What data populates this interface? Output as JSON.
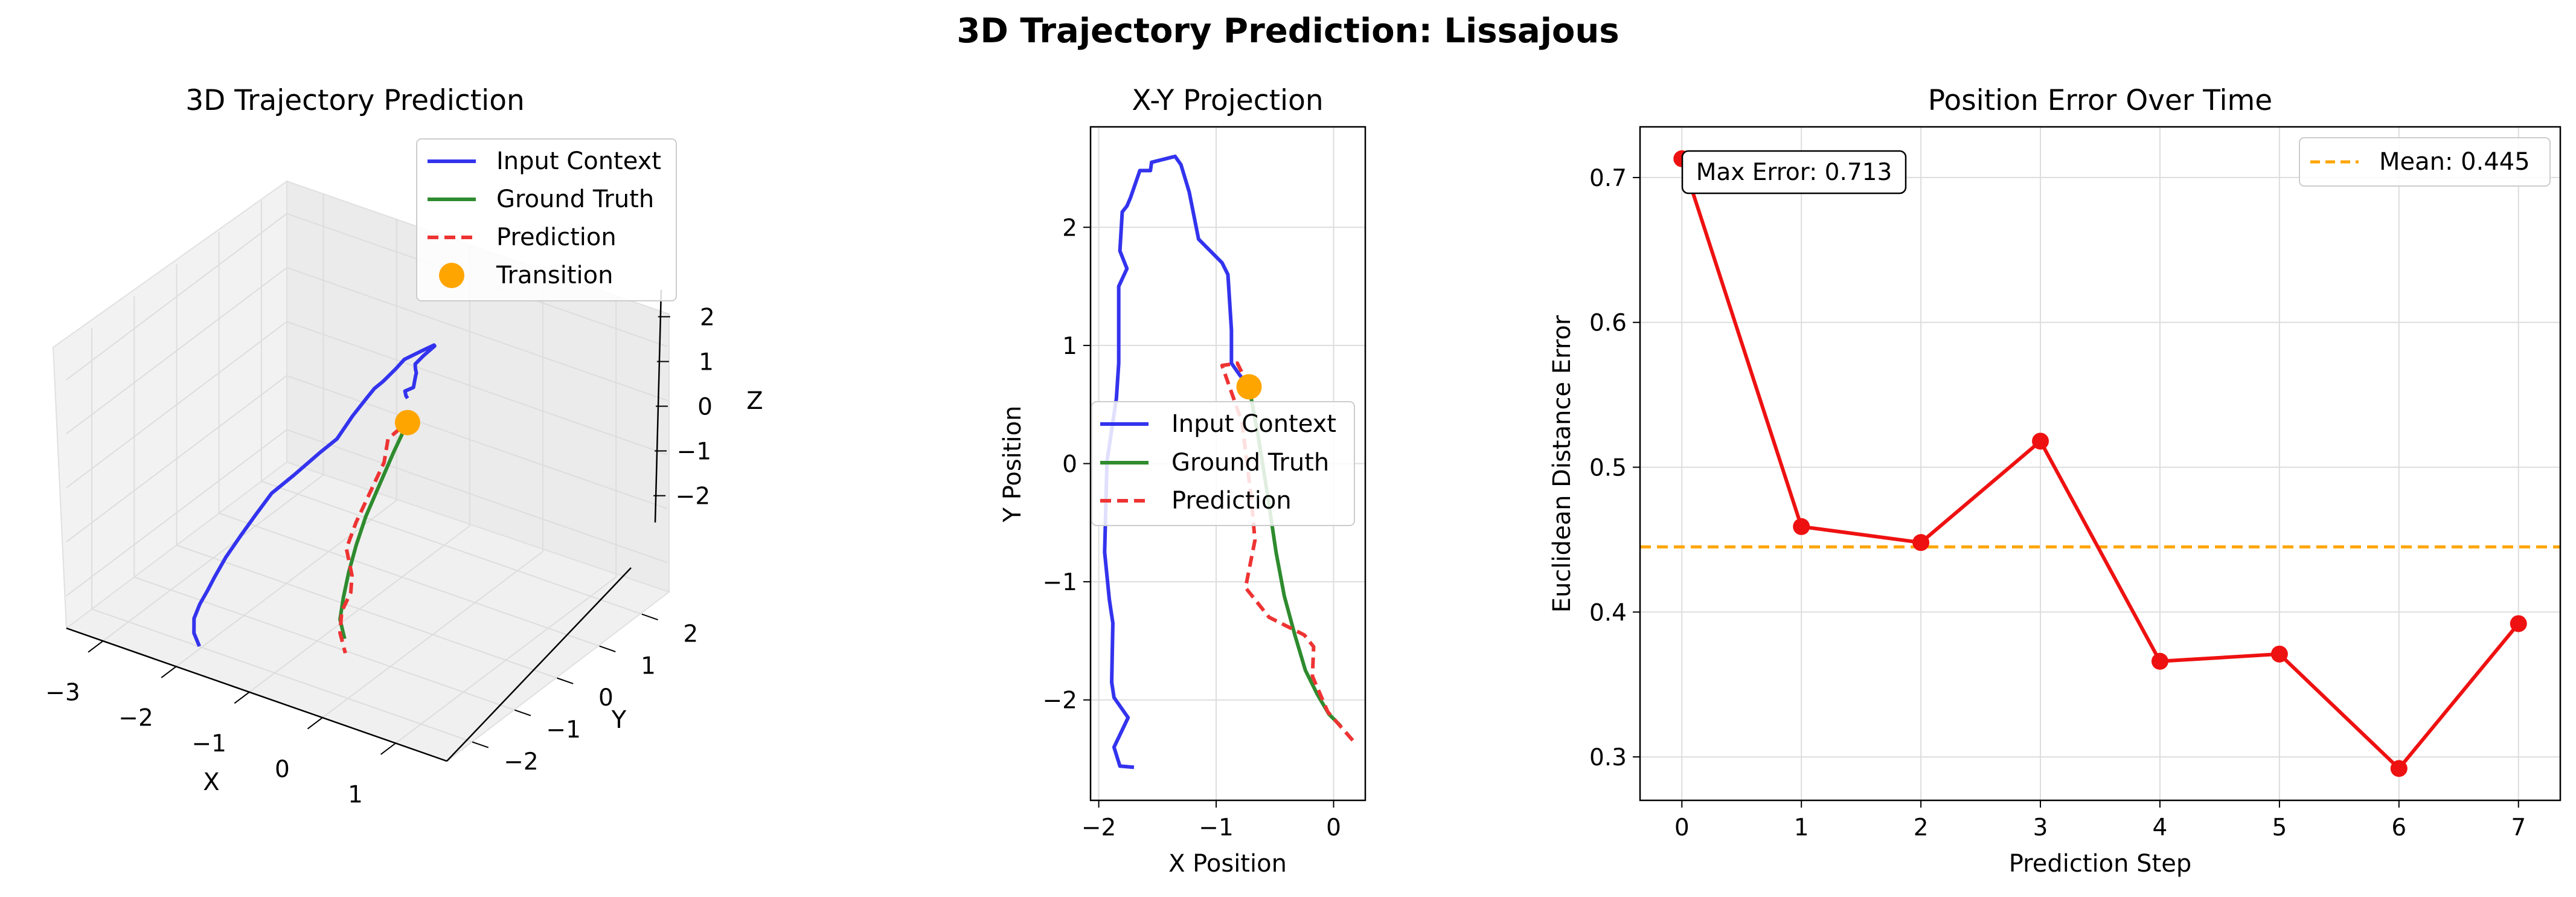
{
  "figure": {
    "suptitle": "3D Trajectory Prediction: Lissajous"
  },
  "colors": {
    "input": "#3333ee",
    "truth": "#2e8b2e",
    "prediction": "#ee3333",
    "transition": "#ffa500",
    "error": "#ee1111",
    "mean": "#ffa500",
    "grid": "#dddddd"
  },
  "chart_data": [
    {
      "type": "line",
      "projection": "3d",
      "title": "3D Trajectory Prediction",
      "xlabel": "X",
      "ylabel": "Y",
      "zlabel": "Z",
      "xlim": [
        -3.5,
        1.7
      ],
      "ylim": [
        -2.6,
        2.6
      ],
      "zlim": [
        -2.6,
        2.6
      ],
      "xticks": [
        -3,
        -2,
        -1,
        0,
        1
      ],
      "yticks": [
        -2,
        -1,
        0,
        1,
        2
      ],
      "zticks": [
        -2,
        -1,
        0,
        1,
        2
      ],
      "xtick_labels": [
        "−3",
        "−2",
        "−1",
        "0",
        "1"
      ],
      "ytick_labels": [
        "−2",
        "−1",
        "0",
        "1",
        "2"
      ],
      "ztick_labels": [
        "−2",
        "−1",
        "0",
        "1",
        "2"
      ],
      "legend": {
        "position": "upper-right",
        "entries": [
          "Input Context",
          "Ground Truth",
          "Prediction",
          "Transition"
        ]
      },
      "series": [
        {
          "name": "Input Context",
          "style": "solid",
          "x": [
            -1.7,
            -1.78,
            -1.86,
            -1.85,
            -1.86,
            -1.88,
            -1.9,
            -1.92,
            -1.95,
            -1.97,
            -1.9,
            -1.85,
            -1.8,
            -1.85,
            -1.86,
            -1.84,
            -1.78,
            -1.75,
            -1.72,
            -1.6,
            -1.5,
            -1.45,
            -1.4,
            -1.34,
            -1.25,
            -1.15,
            -1.1,
            -1.0,
            -0.9,
            -0.9,
            -0.8,
            -0.72
          ],
          "y": [
            -2.57,
            -2.56,
            -2.42,
            -2.3,
            -2.1,
            -1.9,
            -1.6,
            -1.2,
            -0.8,
            -0.4,
            0.0,
            0.55,
            0.85,
            1.3,
            1.65,
            1.8,
            1.9,
            2.15,
            2.3,
            2.48,
            2.62,
            2.55,
            2.2,
            1.9,
            1.75,
            1.6,
            1.5,
            1.3,
            1.1,
            0.9,
            0.75,
            0.65
          ],
          "z": [
            -2.1,
            -1.9,
            -1.75,
            -1.55,
            -1.42,
            -1.3,
            -1.12,
            -0.95,
            -0.82,
            -0.68,
            -0.55,
            -0.42,
            -0.33,
            -0.2,
            -0.08,
            0.02,
            0.12,
            0.22,
            0.32,
            0.42,
            0.5,
            0.55,
            0.6,
            0.65,
            0.7,
            0.75,
            0.8,
            0.85,
            0.9,
            0.95,
            1.0,
            1.05
          ]
        },
        {
          "name": "Ground Truth",
          "style": "solid",
          "x": [
            -0.72,
            -0.65,
            -0.55,
            -0.45,
            -0.35,
            -0.25,
            -0.15,
            -0.05,
            0.1
          ],
          "y": [
            0.65,
            0.2,
            -0.3,
            -0.8,
            -1.2,
            -1.55,
            -1.85,
            -2.1,
            -2.25
          ],
          "z": [
            0.6,
            0.35,
            0.1,
            -0.15,
            -0.4,
            -0.65,
            -0.9,
            -1.1,
            -1.3
          ]
        },
        {
          "name": "Prediction",
          "style": "dashed",
          "x": [
            -0.72,
            -0.8,
            -0.9,
            -0.78,
            -0.7,
            -0.6,
            -0.35,
            -0.25,
            -0.2,
            -0.05,
            0.15
          ],
          "y": [
            0.65,
            0.85,
            0.5,
            0.2,
            -0.6,
            -1.0,
            -1.3,
            -1.5,
            -1.8,
            -2.1,
            -2.32
          ],
          "z": [
            0.6,
            0.5,
            0.3,
            0.1,
            -0.5,
            -0.7,
            -0.9,
            -1.05,
            -1.2,
            -1.35,
            -1.5
          ]
        },
        {
          "name": "Transition",
          "style": "marker",
          "x": [
            -0.72
          ],
          "y": [
            0.65
          ],
          "z": [
            0.6
          ]
        }
      ]
    },
    {
      "type": "line",
      "title": "X-Y Projection",
      "xlabel": "X Position",
      "ylabel": "Y Position",
      "xlim": [
        -2.07,
        0.27
      ],
      "ylim": [
        -2.85,
        2.85
      ],
      "xticks": [
        -2,
        -1,
        0
      ],
      "yticks": [
        -2,
        -1,
        0,
        1,
        2
      ],
      "xtick_labels": [
        "−2",
        "−1",
        "0"
      ],
      "ytick_labels": [
        "−2",
        "−1",
        "0",
        "1",
        "2"
      ],
      "grid": true,
      "legend": {
        "position": "center-left",
        "entries": [
          "Input Context",
          "Ground Truth",
          "Prediction"
        ]
      },
      "series": [
        {
          "name": "Input Context",
          "style": "solid",
          "x": [
            -1.7,
            -1.82,
            -1.87,
            -1.75,
            -1.87,
            -1.89,
            -1.88,
            -1.91,
            -1.93,
            -1.95,
            -1.93,
            -1.85,
            -1.83,
            -1.83,
            -1.76,
            -1.82,
            -1.8,
            -1.76,
            -1.73,
            -1.65,
            -1.56,
            -1.55,
            -1.35,
            -1.3,
            -1.23,
            -1.15,
            -0.95,
            -0.9,
            -0.87,
            -0.87,
            -0.8,
            -0.72
          ],
          "y": [
            -2.57,
            -2.56,
            -2.4,
            -2.15,
            -1.98,
            -1.85,
            -1.35,
            -1.15,
            -0.95,
            -0.75,
            0.02,
            0.55,
            0.85,
            1.5,
            1.65,
            1.8,
            2.13,
            2.18,
            2.25,
            2.48,
            2.48,
            2.55,
            2.6,
            2.53,
            2.3,
            1.9,
            1.7,
            1.6,
            1.13,
            0.85,
            0.75,
            0.65
          ]
        },
        {
          "name": "Ground Truth",
          "style": "solid",
          "x": [
            -0.72,
            -0.64,
            -0.56,
            -0.49,
            -0.42,
            -0.33,
            -0.24,
            -0.14,
            -0.04,
            0.06
          ],
          "y": [
            0.65,
            0.22,
            -0.28,
            -0.75,
            -1.12,
            -1.45,
            -1.75,
            -1.95,
            -2.12,
            -2.22
          ]
        },
        {
          "name": "Prediction",
          "style": "dashed",
          "x": [
            -0.72,
            -0.82,
            -0.95,
            -0.78,
            -0.7,
            -0.67,
            -0.75,
            -0.55,
            -0.25,
            -0.17,
            -0.18,
            -0.05,
            0.17
          ],
          "y": [
            0.65,
            0.85,
            0.83,
            0.35,
            -0.3,
            -0.65,
            -1.05,
            -1.3,
            -1.45,
            -1.55,
            -1.8,
            -2.1,
            -2.35
          ]
        },
        {
          "name": "Transition",
          "style": "marker",
          "x": [
            -0.72
          ],
          "y": [
            0.65
          ]
        }
      ]
    },
    {
      "type": "line",
      "title": "Position Error Over Time",
      "xlabel": "Prediction Step",
      "ylabel": "Euclidean Distance Error",
      "xlim": [
        -0.35,
        7.35
      ],
      "ylim": [
        0.27,
        0.735
      ],
      "xticks": [
        0,
        1,
        2,
        3,
        4,
        5,
        6,
        7
      ],
      "yticks": [
        0.3,
        0.4,
        0.5,
        0.6,
        0.7
      ],
      "xtick_labels": [
        "0",
        "1",
        "2",
        "3",
        "4",
        "5",
        "6",
        "7"
      ],
      "ytick_labels": [
        "0.3",
        "0.4",
        "0.5",
        "0.6",
        "0.7"
      ],
      "grid": true,
      "legend": {
        "position": "upper-right",
        "entries": [
          "Mean: 0.445"
        ]
      },
      "mean_value": 0.445,
      "annotation": "Max Error: 0.713",
      "series": [
        {
          "name": "Error",
          "style": "solid-marker",
          "x": [
            0,
            1,
            2,
            3,
            4,
            5,
            6,
            7
          ],
          "values": [
            0.713,
            0.459,
            0.448,
            0.518,
            0.366,
            0.371,
            0.292,
            0.392
          ]
        }
      ]
    }
  ]
}
